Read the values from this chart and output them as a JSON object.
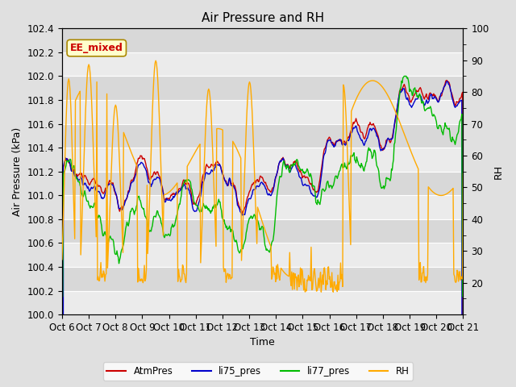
{
  "title": "Air Pressure and RH",
  "xlabel": "Time",
  "ylabel_left": "Air Pressure (kPa)",
  "ylabel_right": "RH",
  "annotation": "EE_mixed",
  "ylim_left": [
    100.0,
    102.4
  ],
  "ylim_right": [
    10,
    100
  ],
  "yticks_left": [
    100.0,
    100.2,
    100.4,
    100.6,
    100.8,
    101.0,
    101.2,
    101.4,
    101.6,
    101.8,
    102.0,
    102.2,
    102.4
  ],
  "yticks_right": [
    20,
    30,
    40,
    50,
    60,
    70,
    80,
    90,
    100
  ],
  "xtick_labels": [
    "Oct 6",
    "Oct 7",
    "Oct 8",
    "Oct 9",
    "Oct 10",
    "Oct 11",
    "Oct 12",
    "Oct 13",
    "Oct 14",
    "Oct 15",
    "Oct 16",
    "Oct 17",
    "Oct 18",
    "Oct 19",
    "Oct 20",
    "Oct 21"
  ],
  "colors": {
    "AtmPres": "#cc0000",
    "li75_pres": "#0000cc",
    "li77_pres": "#00bb00",
    "RH": "#ffaa00"
  },
  "legend_labels": [
    "AtmPres",
    "li75_pres",
    "li77_pres",
    "RH"
  ],
  "bg_color": "#e0e0e0",
  "band_light": "#ebebeb",
  "band_dark": "#d8d8d8",
  "annotation_bg": "#ffffcc",
  "annotation_border": "#aa8800",
  "annotation_text_color": "#cc0000",
  "title_fontsize": 11,
  "axis_fontsize": 9,
  "tick_fontsize": 8.5
}
